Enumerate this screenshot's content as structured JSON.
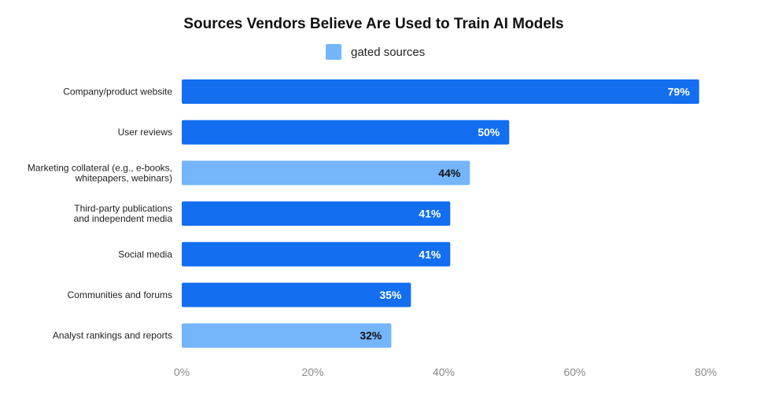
{
  "chart_data": {
    "type": "bar",
    "orientation": "horizontal",
    "title": "Sources Vendors Believe Are Used to Train AI Models",
    "legend": [
      {
        "label": "gated sources",
        "color": "#74b5fb"
      }
    ],
    "categories": [
      [
        "Company/product website"
      ],
      [
        "User reviews"
      ],
      [
        "Marketing collateral (e.g., e-books,",
        "whitepapers, webinars)"
      ],
      [
        "Third-party publications",
        "and independent media"
      ],
      [
        "Social media"
      ],
      [
        "Communities and forums"
      ],
      [
        "Analyst rankings and reports"
      ]
    ],
    "values": [
      79,
      50,
      44,
      41,
      41,
      35,
      32
    ],
    "value_labels": [
      "79%",
      "50%",
      "44%",
      "41%",
      "41%",
      "35%",
      "32%"
    ],
    "gated": [
      false,
      false,
      true,
      false,
      false,
      false,
      true
    ],
    "xlim": [
      0,
      80
    ],
    "ticks": [
      0,
      20,
      40,
      60,
      80
    ],
    "tick_labels": [
      "0%",
      "20%",
      "40%",
      "60%",
      "80%"
    ],
    "colors": {
      "default": "#136ef0",
      "gated": "#74b5fb",
      "label_on_default": "#ffffff",
      "label_on_gated": "#111111"
    }
  }
}
